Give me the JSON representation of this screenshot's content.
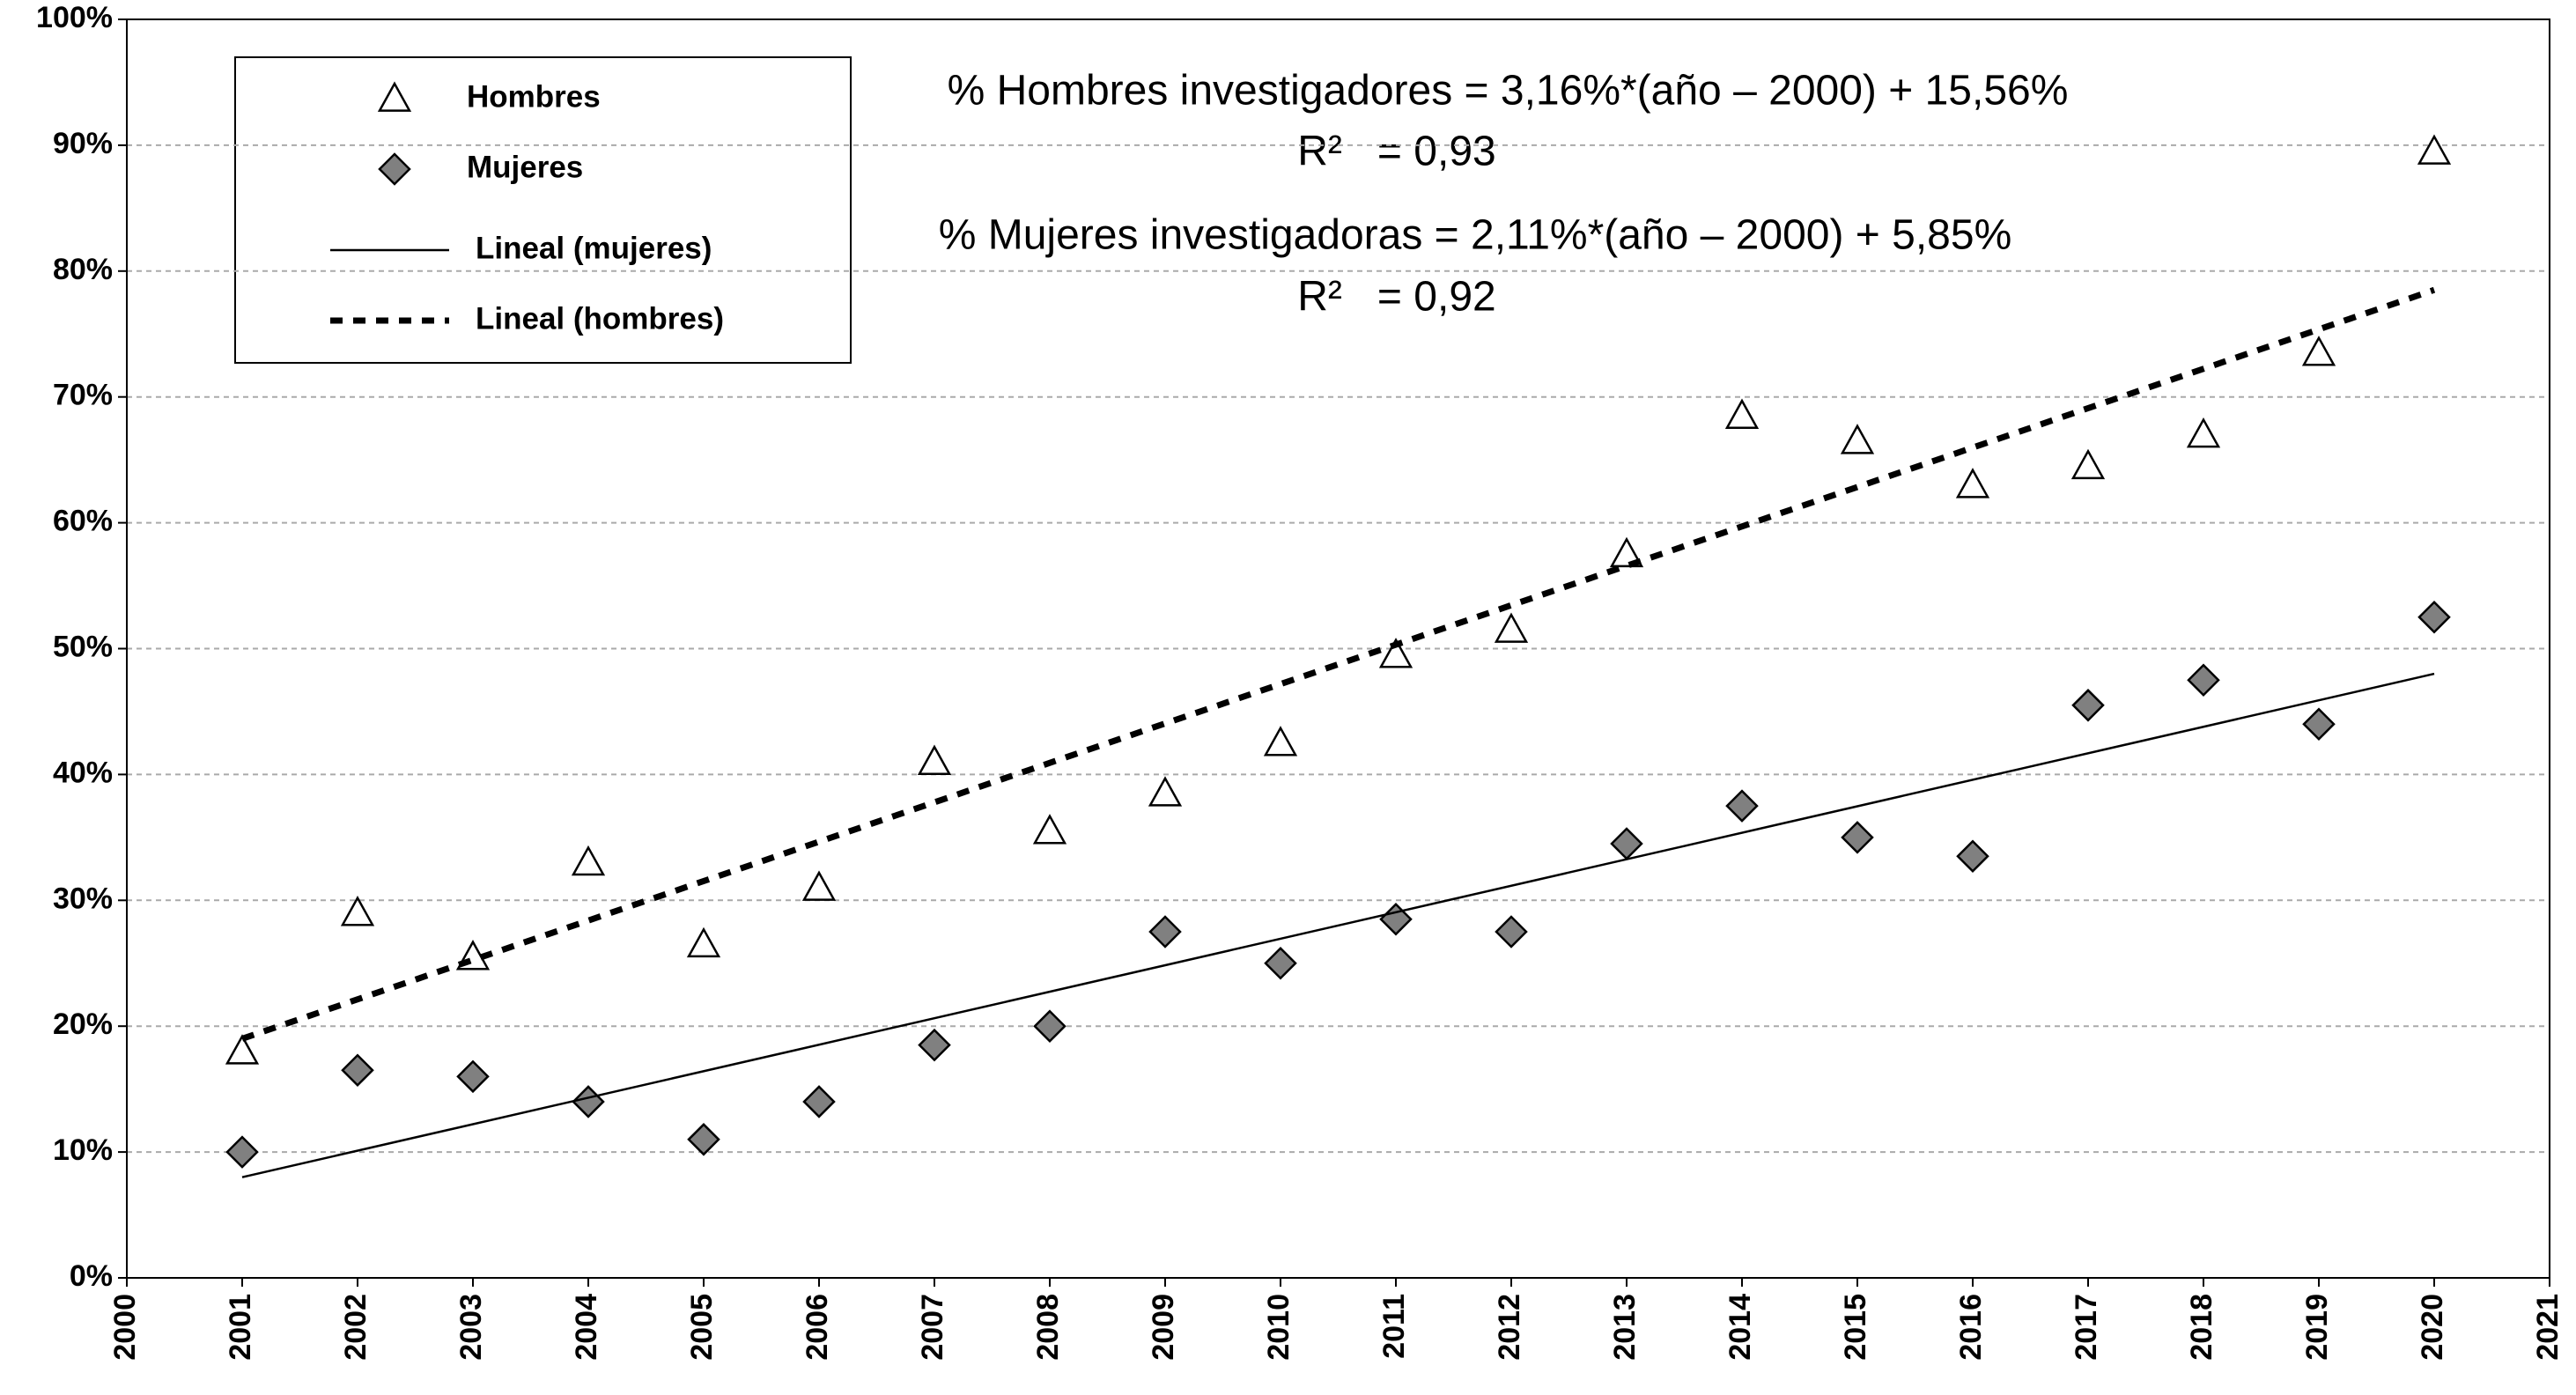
{
  "chart_data": {
    "type": "scatter",
    "annotations": [
      "% Hombres investigadores = 3,16%*(año – 2000) + 15,56%",
      "R²   = 0,93",
      "% Mujeres investigadoras = 2,11%*(año – 2000) + 5,85%",
      "R²   = 0,92"
    ],
    "xlim": [
      2000,
      2021
    ],
    "xticks": [
      2000,
      2001,
      2002,
      2003,
      2004,
      2005,
      2006,
      2007,
      2008,
      2009,
      2010,
      2011,
      2012,
      2013,
      2014,
      2015,
      2016,
      2017,
      2018,
      2019,
      2020,
      2021
    ],
    "ylim": [
      0,
      100
    ],
    "yticks": [
      {
        "value": 0,
        "label": "0%"
      },
      {
        "value": 10,
        "label": "10%"
      },
      {
        "value": 20,
        "label": "20%"
      },
      {
        "value": 30,
        "label": "30%"
      },
      {
        "value": 40,
        "label": "40%"
      },
      {
        "value": 50,
        "label": "50%"
      },
      {
        "value": 60,
        "label": "60%"
      },
      {
        "value": 70,
        "label": "70%"
      },
      {
        "value": 80,
        "label": "80%"
      },
      {
        "value": 90,
        "label": "90%"
      },
      {
        "value": 100,
        "label": "100%"
      }
    ],
    "grid": true,
    "legend": "top-left",
    "series": [
      {
        "name": "Hombres",
        "marker": "triangle",
        "color": "#ffffff",
        "x": [
          2001,
          2002,
          2003,
          2004,
          2005,
          2006,
          2007,
          2008,
          2009,
          2010,
          2011,
          2012,
          2013,
          2014,
          2015,
          2016,
          2017,
          2018,
          2019,
          2020
        ],
        "values": [
          18,
          29,
          25.5,
          33,
          26.5,
          31,
          41,
          35.5,
          38.5,
          42.5,
          49.5,
          51.5,
          57.5,
          68.5,
          66.5,
          63,
          64.5,
          67,
          73.5,
          89.5
        ]
      },
      {
        "name": "Mujeres",
        "marker": "diamond",
        "color": "#808080",
        "x": [
          2001,
          2002,
          2003,
          2004,
          2005,
          2006,
          2007,
          2008,
          2009,
          2010,
          2011,
          2012,
          2013,
          2014,
          2015,
          2016,
          2017,
          2018,
          2019,
          2020
        ],
        "values": [
          10,
          16.5,
          16,
          14,
          11,
          14,
          18.5,
          20,
          27.5,
          25,
          28.5,
          27.5,
          34.5,
          37.5,
          35,
          33.5,
          45.5,
          47.5,
          44,
          52.5
        ]
      },
      {
        "name": "Lineal (mujeres)",
        "line": "solid",
        "color": "#000000",
        "x": [
          2001,
          2020
        ],
        "values": [
          8,
          48
        ]
      },
      {
        "name": "Lineal (hombres)",
        "line": "dashed",
        "color": "#000000",
        "x": [
          2001,
          2020
        ],
        "values": [
          19,
          78.5
        ]
      }
    ]
  }
}
